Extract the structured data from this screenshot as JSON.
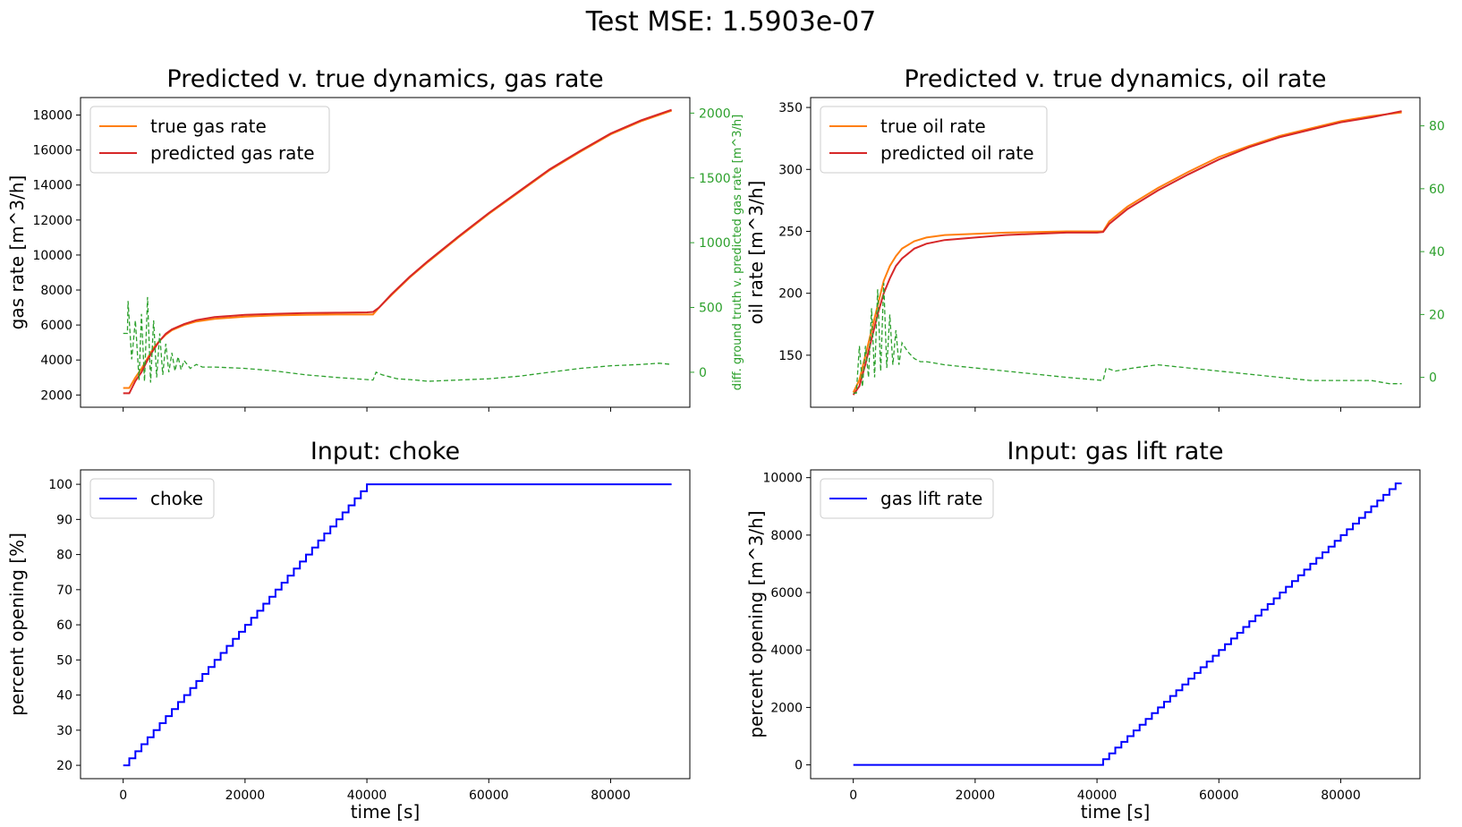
{
  "suptitle": "Test MSE: 1.5903e-07",
  "chart_data": [
    {
      "type": "line",
      "title": "Predicted v. true dynamics, gas rate",
      "xlabel": "",
      "ylabel": "gas rate [m^3/h]",
      "y2label": "diff. ground truth v. predicted gas rate [m^3/h]",
      "xlim": [
        -7000,
        93000
      ],
      "ylim": [
        1300,
        19000
      ],
      "y2lim": [
        -270,
        2120
      ],
      "xticks": [
        0,
        20000,
        40000,
        60000,
        80000
      ],
      "xticklabels": [],
      "yticks": [
        2000,
        4000,
        6000,
        8000,
        10000,
        12000,
        14000,
        16000,
        18000
      ],
      "y2ticks": [
        0,
        500,
        1000,
        1500,
        2000
      ],
      "legend": {
        "position": "upper-left",
        "entries": [
          "true gas rate",
          "predicted gas rate"
        ]
      },
      "grid": false,
      "series": [
        {
          "name": "true gas rate",
          "color": "#ff7f0e",
          "axis": "left",
          "x": [
            0,
            1000,
            2000,
            3000,
            4000,
            5000,
            6000,
            7000,
            8000,
            10000,
            12000,
            15000,
            20000,
            25000,
            30000,
            35000,
            40000,
            41000,
            42000,
            44000,
            47000,
            50000,
            55000,
            60000,
            65000,
            70000,
            75000,
            80000,
            85000,
            90000
          ],
          "y": [
            2400,
            2400,
            3000,
            3500,
            4100,
            4700,
            5100,
            5450,
            5700,
            6000,
            6200,
            6350,
            6480,
            6550,
            6580,
            6600,
            6600,
            6600,
            7000,
            7700,
            8700,
            9600,
            11000,
            12350,
            13600,
            14850,
            15900,
            16900,
            17650,
            18250
          ]
        },
        {
          "name": "predicted gas rate",
          "color": "#d62728",
          "axis": "left",
          "x": [
            0,
            1000,
            2000,
            3000,
            4000,
            5000,
            6000,
            7000,
            8000,
            10000,
            12000,
            15000,
            20000,
            25000,
            30000,
            35000,
            40000,
            41000,
            42000,
            44000,
            47000,
            50000,
            55000,
            60000,
            65000,
            70000,
            75000,
            80000,
            85000,
            90000
          ],
          "y": [
            2100,
            2100,
            2800,
            3300,
            4000,
            4600,
            5100,
            5500,
            5750,
            6050,
            6280,
            6450,
            6580,
            6640,
            6680,
            6700,
            6720,
            6750,
            7000,
            7750,
            8750,
            9650,
            11050,
            12400,
            13650,
            14900,
            15950,
            16950,
            17700,
            18300
          ]
        },
        {
          "name": "diff",
          "color": "#2ca02c",
          "axis": "right",
          "dashed": true,
          "x": [
            0,
            700,
            800,
            1400,
            2000,
            2600,
            3000,
            3500,
            4000,
            4500,
            5000,
            5500,
            6000,
            6500,
            7000,
            7500,
            8000,
            8500,
            9000,
            9500,
            10000,
            11000,
            12000,
            13000,
            15000,
            20000,
            25000,
            30000,
            35000,
            41000,
            41500,
            42500,
            45000,
            48000,
            50000,
            55000,
            60000,
            65000,
            70000,
            75000,
            80000,
            85000,
            88000,
            90000
          ],
          "y": [
            300,
            300,
            550,
            100,
            400,
            -60,
            450,
            -70,
            580,
            -80,
            400,
            -40,
            300,
            -20,
            220,
            0,
            150,
            10,
            120,
            20,
            90,
            30,
            60,
            40,
            40,
            30,
            10,
            -20,
            -40,
            -60,
            0,
            -20,
            -50,
            -60,
            -70,
            -60,
            -50,
            -30,
            0,
            30,
            50,
            60,
            70,
            60
          ]
        }
      ]
    },
    {
      "type": "line",
      "title": "Predicted v. true dynamics, oil rate",
      "xlabel": "",
      "ylabel": "oil rate [m^3/h]",
      "y2label": "diff. ground truth v. predicted oil rate [m^3/h]",
      "xlim": [
        -7000,
        93000
      ],
      "ylim": [
        108,
        358
      ],
      "y2lim": [
        -9.5,
        89
      ],
      "xticks": [
        0,
        20000,
        40000,
        60000,
        80000
      ],
      "xticklabels": [],
      "yticks": [
        150,
        200,
        250,
        300,
        350
      ],
      "y2ticks": [
        0,
        20,
        40,
        60,
        80
      ],
      "legend": {
        "position": "upper-left",
        "entries": [
          "true oil rate",
          "predicted oil rate"
        ]
      },
      "grid": false,
      "series": [
        {
          "name": "true oil rate",
          "color": "#ff7f0e",
          "axis": "left",
          "x": [
            0,
            1000,
            2000,
            3000,
            4000,
            5000,
            6000,
            7000,
            8000,
            10000,
            12000,
            15000,
            20000,
            25000,
            30000,
            35000,
            40000,
            41000,
            42000,
            45000,
            50000,
            55000,
            60000,
            65000,
            70000,
            75000,
            80000,
            85000,
            90000
          ],
          "y": [
            120,
            130,
            150,
            170,
            190,
            210,
            222,
            230,
            236,
            242,
            245,
            247,
            248,
            249,
            249.5,
            250,
            250,
            250,
            258,
            270,
            285,
            298,
            310,
            319,
            327,
            333,
            339,
            343,
            346
          ]
        },
        {
          "name": "predicted oil rate",
          "color": "#d62728",
          "axis": "left",
          "x": [
            0,
            1000,
            2000,
            3000,
            4000,
            5000,
            6000,
            7000,
            8000,
            10000,
            12000,
            15000,
            20000,
            25000,
            30000,
            35000,
            40000,
            41000,
            42000,
            45000,
            50000,
            55000,
            60000,
            65000,
            70000,
            75000,
            80000,
            85000,
            90000
          ],
          "y": [
            118,
            125,
            143,
            163,
            183,
            200,
            212,
            222,
            228,
            236,
            240,
            243,
            245,
            247,
            248,
            249,
            249,
            249.5,
            256,
            268,
            283,
            296,
            308,
            318,
            326,
            332,
            338,
            342,
            347
          ]
        },
        {
          "name": "diff",
          "color": "#2ca02c",
          "axis": "right",
          "dashed": true,
          "x": [
            0,
            500,
            1000,
            1500,
            2000,
            2500,
            3000,
            3500,
            4000,
            4500,
            5000,
            5500,
            6000,
            6500,
            7000,
            7500,
            8000,
            9000,
            10000,
            11000,
            12000,
            15000,
            20000,
            25000,
            30000,
            35000,
            41000,
            41500,
            43000,
            46000,
            50000,
            55000,
            60000,
            65000,
            70000,
            75000,
            80000,
            85000,
            88000,
            90000
          ],
          "y": [
            -5,
            -5,
            10,
            -3,
            10,
            0,
            22,
            0,
            28,
            2,
            30,
            3,
            20,
            4,
            15,
            4,
            11,
            8,
            6,
            5,
            5,
            4,
            3,
            2,
            1,
            0,
            -1,
            3,
            2,
            3,
            4,
            3,
            2,
            1,
            0,
            -1,
            -1,
            -1,
            -2,
            -2
          ]
        }
      ]
    },
    {
      "type": "line",
      "title": "Input: choke",
      "xlabel": "time [s]",
      "ylabel": "percent opening [%]",
      "xlim": [
        -7000,
        93000
      ],
      "ylim": [
        16.2,
        104.1
      ],
      "xticks": [
        0,
        20000,
        40000,
        60000,
        80000
      ],
      "xticklabels": [
        "0",
        "20000",
        "40000",
        "60000",
        "80000"
      ],
      "yticks": [
        20,
        30,
        40,
        50,
        60,
        70,
        80,
        90,
        100
      ],
      "legend": {
        "position": "upper-left",
        "entries": [
          "choke"
        ]
      },
      "grid": false,
      "series": [
        {
          "name": "choke",
          "color": "#0000ff",
          "step": true,
          "x": [
            0,
            1000,
            2000,
            3000,
            4000,
            5000,
            6000,
            7000,
            8000,
            9000,
            10000,
            11000,
            12000,
            13000,
            14000,
            15000,
            16000,
            17000,
            18000,
            19000,
            20000,
            21000,
            22000,
            23000,
            24000,
            25000,
            26000,
            27000,
            28000,
            29000,
            30000,
            31000,
            32000,
            33000,
            34000,
            35000,
            36000,
            37000,
            38000,
            39000,
            40000,
            90000
          ],
          "y": [
            20,
            22,
            24,
            26,
            28,
            30,
            32,
            34,
            36,
            38,
            40,
            42,
            44,
            46,
            48,
            50,
            52,
            54,
            56,
            58,
            60,
            62,
            64,
            66,
            68,
            70,
            72,
            74,
            76,
            78,
            80,
            82,
            84,
            86,
            88,
            90,
            92,
            94,
            96,
            98,
            100,
            100
          ]
        }
      ]
    },
    {
      "type": "line",
      "title": "Input: gas lift rate",
      "xlabel": "time [s]",
      "ylabel": "percent opening [m^3/h]",
      "xlim": [
        -7000,
        93000
      ],
      "ylim": [
        -480,
        10270
      ],
      "xticks": [
        0,
        20000,
        40000,
        60000,
        80000
      ],
      "xticklabels": [
        "0",
        "20000",
        "40000",
        "60000",
        "80000"
      ],
      "yticks": [
        0,
        2000,
        4000,
        6000,
        8000,
        10000
      ],
      "legend": {
        "position": "upper-left",
        "entries": [
          "gas lift rate"
        ]
      },
      "grid": false,
      "series": [
        {
          "name": "gas lift rate",
          "color": "#0000ff",
          "step": true,
          "x": [
            0,
            41000,
            42000,
            43000,
            44000,
            45000,
            46000,
            47000,
            48000,
            49000,
            50000,
            51000,
            52000,
            53000,
            54000,
            55000,
            56000,
            57000,
            58000,
            59000,
            60000,
            61000,
            62000,
            63000,
            64000,
            65000,
            66000,
            67000,
            68000,
            69000,
            70000,
            71000,
            72000,
            73000,
            74000,
            75000,
            76000,
            77000,
            78000,
            79000,
            80000,
            81000,
            82000,
            83000,
            84000,
            85000,
            86000,
            87000,
            88000,
            89000,
            90000
          ],
          "y": [
            0,
            200,
            400,
            600,
            800,
            1000,
            1200,
            1400,
            1600,
            1800,
            2000,
            2200,
            2400,
            2600,
            2800,
            3000,
            3200,
            3400,
            3600,
            3800,
            4000,
            4200,
            4400,
            4600,
            4800,
            5000,
            5200,
            5400,
            5600,
            5800,
            6000,
            6200,
            6400,
            6600,
            6800,
            7000,
            7200,
            7400,
            7600,
            7800,
            8000,
            8200,
            8400,
            8600,
            8800,
            9000,
            9200,
            9400,
            9600,
            9800,
            9800
          ]
        }
      ]
    }
  ]
}
